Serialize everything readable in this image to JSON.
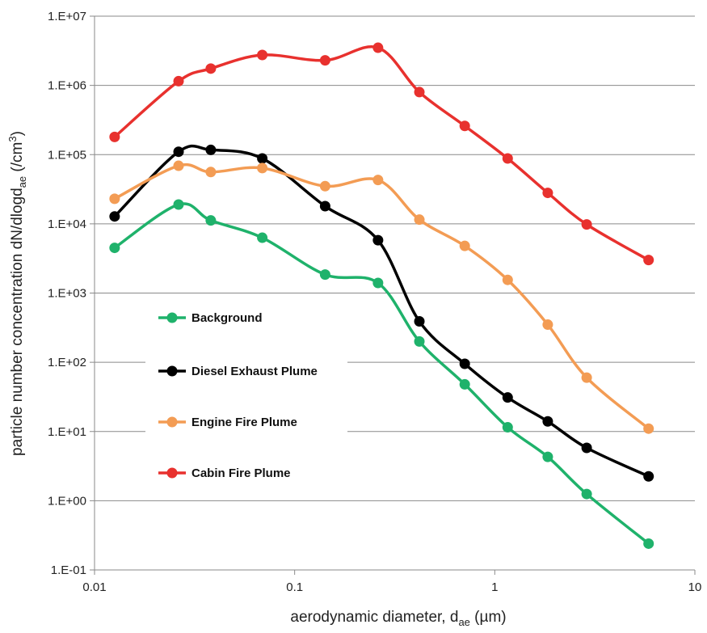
{
  "chart_data": {
    "type": "line",
    "xlabel": "aerodynamic diameter, d",
    "xlabel_sub": "ae",
    "xlabel_tail": " (µm)",
    "ylabel": "particle number concentration dN/dlogd",
    "ylabel_sub": "ae",
    "ylabel_tail": " (/cm",
    "ylabel_sup": "3",
    "ylabel_end": ")",
    "x_scale": "log",
    "y_scale": "log",
    "xlim": [
      0.01,
      10
    ],
    "ylim": [
      0.1,
      10000000
    ],
    "x_ticks": [
      {
        "value": 0.01,
        "label": "0.01"
      },
      {
        "value": 0.1,
        "label": "0.1"
      },
      {
        "value": 1,
        "label": "1"
      },
      {
        "value": 10,
        "label": "10"
      }
    ],
    "y_ticks": [
      {
        "value": 0.1,
        "label": "1.E-01"
      },
      {
        "value": 1,
        "label": "1.E+00"
      },
      {
        "value": 10,
        "label": "1.E+01"
      },
      {
        "value": 100,
        "label": "1.E+02"
      },
      {
        "value": 1000,
        "label": "1.E+03"
      },
      {
        "value": 10000,
        "label": "1.E+04"
      },
      {
        "value": 100000,
        "label": "1.E+05"
      },
      {
        "value": 1000000,
        "label": "1.E+06"
      },
      {
        "value": 10000000,
        "label": "1.E+07"
      }
    ],
    "grid": "horizontal",
    "legend_position": "lower-left",
    "x": [
      0.0126,
      0.0263,
      0.0381,
      0.0689,
      0.142,
      0.261,
      0.42,
      0.708,
      1.16,
      1.84,
      2.88,
      5.87
    ],
    "series": [
      {
        "name": "Background",
        "color": "#1fb26b",
        "values": [
          4500,
          19000,
          11200,
          6300,
          1850,
          1400,
          200,
          48,
          11.5,
          4.3,
          1.25,
          0.24
        ]
      },
      {
        "name": "Diesel Exhaust Plume",
        "color": "#000000",
        "values": [
          12800,
          110000,
          117000,
          88000,
          18000,
          5800,
          390,
          95,
          31,
          14,
          5.8,
          2.25
        ]
      },
      {
        "name": "Engine Fire Plume",
        "color": "#f39c54",
        "values": [
          23000,
          69000,
          56000,
          64000,
          35000,
          43000,
          11500,
          4800,
          1550,
          350,
          60,
          11
        ]
      },
      {
        "name": "Cabin Fire Plume",
        "color": "#e8312e",
        "values": [
          180000,
          1150000,
          1750000,
          2750000,
          2300000,
          3500000,
          800000,
          260000,
          88000,
          28000,
          9800,
          3000
        ]
      }
    ]
  }
}
